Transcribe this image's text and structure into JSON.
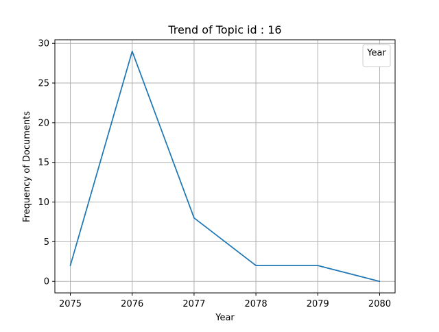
{
  "chart_data": {
    "type": "line",
    "title": "Trend of Topic id : 16",
    "xlabel": "Year",
    "ylabel": "Frequency of Documents",
    "x": [
      2075,
      2076,
      2077,
      2078,
      2079,
      2080
    ],
    "series": [
      {
        "values": [
          2,
          29,
          8,
          2,
          2,
          0
        ],
        "color": "#1f77b4"
      }
    ],
    "xlim": [
      2074.75,
      2080.25
    ],
    "ylim": [
      -1.45,
      30.45
    ],
    "xticks": [
      "2075",
      "2076",
      "2077",
      "2078",
      "2079",
      "2080"
    ],
    "yticks": [
      "0",
      "5",
      "10",
      "15",
      "20",
      "25",
      "30"
    ],
    "grid": true,
    "legend": {
      "title": "Year",
      "placement": "top-right"
    }
  }
}
